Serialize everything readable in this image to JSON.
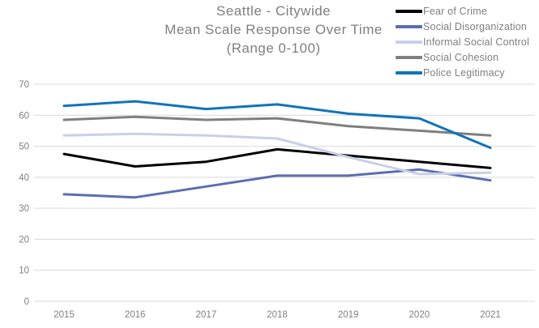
{
  "title": {
    "line1": "Seattle - Citywide",
    "line2": "Mean Scale Response Over Time",
    "line3": "(Range 0-100)"
  },
  "colors": {
    "background": "#FFFFFF",
    "text_gray": "#7F7F7F",
    "gridline": "#D9D9D9"
  },
  "chart_data": {
    "type": "line",
    "title": "Seattle - Citywide Mean Scale Response Over Time (Range 0-100)",
    "x": [
      "2015",
      "2016",
      "2017",
      "2018",
      "2019",
      "2020",
      "2021"
    ],
    "series": [
      {
        "name": "Fear of Crime",
        "color": "#000000",
        "values": [
          47.5,
          43.5,
          45,
          49,
          47,
          45,
          43
        ]
      },
      {
        "name": "Social Disorganization",
        "color": "#5B6DB1",
        "values": [
          34.5,
          33.5,
          37,
          40.5,
          40.5,
          42.5,
          39
        ]
      },
      {
        "name": "Informal Social Control",
        "color": "#C9CFE9",
        "values": [
          53.5,
          54,
          53.5,
          52.5,
          46.5,
          41,
          41.5
        ]
      },
      {
        "name": "Social Cohesion",
        "color": "#7F7F7F",
        "values": [
          58.5,
          59.5,
          58.5,
          59,
          56.5,
          55,
          53.5
        ]
      },
      {
        "name": "Police Legitimacy",
        "color": "#1173BC",
        "values": [
          63,
          64.5,
          62,
          63.5,
          60.5,
          59,
          49.5
        ]
      }
    ],
    "ylim": [
      0,
      70
    ],
    "yticks": [
      0,
      10,
      20,
      30,
      40,
      50,
      60,
      70
    ],
    "xlabel": "",
    "ylabel": "",
    "grid": "horizontal",
    "legend_position": "top-right",
    "line_width": 3
  }
}
